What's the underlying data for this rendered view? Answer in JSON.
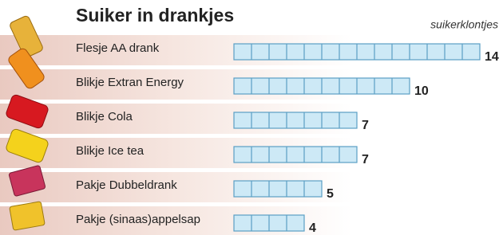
{
  "chart_data": {
    "type": "bar",
    "orientation": "horizontal",
    "title": "Suiker in drankjes",
    "unit_label": "suikerklontjes",
    "categories": [
      "Flesje AA drank",
      "Blikje Extran Energy",
      "Blikje Cola",
      "Blikje Ice tea",
      "Pakje Dubbeldrank",
      "Pakje (sinaas)appelsap"
    ],
    "values": [
      14,
      10,
      7,
      7,
      5,
      4
    ],
    "color": "#cde9f6"
  }
}
